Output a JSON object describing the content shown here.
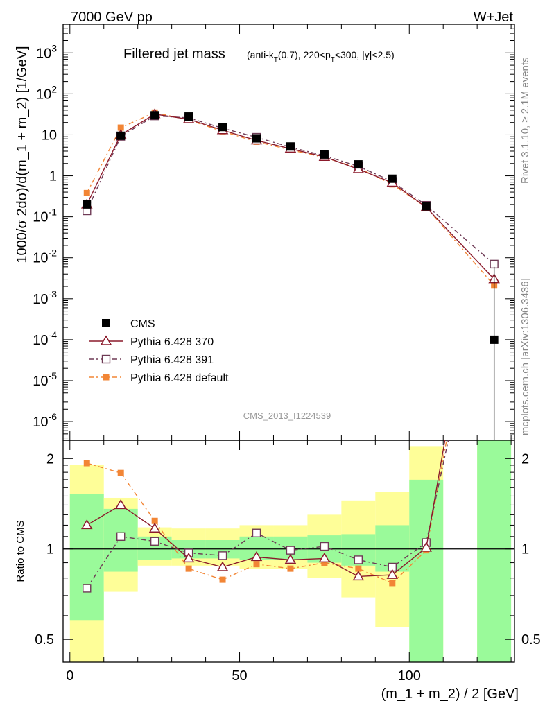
{
  "header": {
    "energy_label": "7000 GeV pp",
    "process_label": "W+Jet",
    "plot_title_main": "Filtered jet mass",
    "plot_title_sub": "(anti-k_T(0.7), 220<p_T<300, |y|<2.5)",
    "watermark": "CMS_2013_I1224539",
    "side_top": "Rivet 3.1.10, ≥ 2.1M events",
    "side_bottom": "mcplots.cern.ch [arXiv:1306.3436]"
  },
  "legend": [
    {
      "label": "CMS",
      "color": "#000000",
      "marker": "square-filled"
    },
    {
      "label": "Pythia 6.428 370",
      "color": "#8b1a2b",
      "marker": "triangle-open"
    },
    {
      "label": "Pythia 6.428 391",
      "color": "#6e3a55",
      "marker": "square-open"
    },
    {
      "label": "Pythia 6.428 default",
      "color": "#f28535",
      "marker": "square-filled-small"
    }
  ],
  "chart_data": [
    {
      "type": "line",
      "panel": "main",
      "ylabel": "1000/σ 2dσ)/d(m_1 + m_2) [1/GeV]",
      "yscale": "log",
      "ylim": [
        3.5e-07,
        5000
      ],
      "xlim": [
        -2,
        131
      ],
      "yticks": [
        1e-06,
        1e-05,
        0.0001,
        0.001,
        0.01,
        0.1,
        1,
        10,
        100,
        1000
      ],
      "ytick_labels": [
        "10^-6",
        "10^-5",
        "10^-4",
        "10^-3",
        "10^-2",
        "10^-1",
        "1",
        "10",
        "10^2",
        "10^3"
      ],
      "x": [
        5,
        15,
        25,
        35,
        45,
        55,
        65,
        75,
        85,
        95,
        105,
        125
      ],
      "series": [
        {
          "name": "CMS",
          "values": [
            0.2,
            9.5,
            30,
            28,
            15.5,
            8.2,
            5.2,
            3.3,
            1.9,
            0.85,
            0.18,
            0.0001
          ]
        },
        {
          "name": "Pythia 6.428 370",
          "values": [
            0.2,
            10,
            32,
            24,
            13,
            7.3,
            4.6,
            2.9,
            1.45,
            0.68,
            0.17,
            0.003
          ]
        },
        {
          "name": "Pythia 6.428 391",
          "values": [
            0.14,
            9.2,
            29,
            26,
            14.5,
            8.7,
            5.0,
            3.1,
            1.7,
            0.73,
            0.19,
            0.007
          ]
        },
        {
          "name": "Pythia 6.428 default",
          "values": [
            0.38,
            15,
            35,
            23,
            12.2,
            6.8,
            4.3,
            2.8,
            1.55,
            0.62,
            0.17,
            0.0021
          ]
        }
      ]
    },
    {
      "type": "line",
      "panel": "ratio",
      "ylabel": "Ratio to CMS",
      "xlabel": "(m_1 + m_2) / 2 [GeV]",
      "ylim": [
        0.42,
        2.3
      ],
      "xlim": [
        -2,
        131
      ],
      "yticks": [
        0.5,
        1,
        2
      ],
      "xticks": [
        0,
        50,
        100
      ],
      "x": [
        5,
        15,
        25,
        35,
        45,
        55,
        65,
        75,
        85,
        95,
        105
      ],
      "series": [
        {
          "name": "Pythia 6.428 370",
          "values": [
            1.2,
            1.4,
            1.17,
            0.93,
            0.87,
            0.94,
            0.92,
            0.93,
            0.81,
            0.82,
            1.01
          ]
        },
        {
          "name": "Pythia 6.428 391",
          "values": [
            0.74,
            1.1,
            1.06,
            0.97,
            0.95,
            1.13,
            0.99,
            1.02,
            0.92,
            0.87,
            1.05
          ]
        },
        {
          "name": "Pythia 6.428 default",
          "values": [
            1.93,
            1.79,
            1.24,
            0.86,
            0.79,
            0.89,
            0.86,
            0.9,
            0.86,
            0.77,
            0.99
          ]
        }
      ],
      "uncertainty_bands": [
        {
          "x_range": [
            0,
            10
          ],
          "inner": [
            0.58,
            1.52
          ],
          "outer": [
            0.3,
            1.9
          ]
        },
        {
          "x_range": [
            10,
            20
          ],
          "inner": [
            0.84,
            1.36
          ],
          "outer": [
            0.72,
            1.48
          ]
        },
        {
          "x_range": [
            20,
            30
          ],
          "inner": [
            0.92,
            1.1
          ],
          "outer": [
            0.88,
            1.18
          ]
        },
        {
          "x_range": [
            30,
            40
          ],
          "inner": [
            0.93,
            1.07
          ],
          "outer": [
            0.88,
            1.17
          ]
        },
        {
          "x_range": [
            40,
            50
          ],
          "inner": [
            0.93,
            1.07
          ],
          "outer": [
            0.88,
            1.17
          ]
        },
        {
          "x_range": [
            50,
            60
          ],
          "inner": [
            0.92,
            1.1
          ],
          "outer": [
            0.86,
            1.2
          ]
        },
        {
          "x_range": [
            60,
            70
          ],
          "inner": [
            0.92,
            1.1
          ],
          "outer": [
            0.86,
            1.2
          ]
        },
        {
          "x_range": [
            70,
            80
          ],
          "inner": [
            0.9,
            1.11
          ],
          "outer": [
            0.8,
            1.3
          ]
        },
        {
          "x_range": [
            80,
            90
          ],
          "inner": [
            0.88,
            1.12
          ],
          "outer": [
            0.69,
            1.45
          ]
        },
        {
          "x_range": [
            90,
            100
          ],
          "inner": [
            0.84,
            1.2
          ],
          "outer": [
            0.55,
            1.55
          ]
        },
        {
          "x_range": [
            100,
            110
          ],
          "inner": [
            0.3,
            1.7
          ],
          "outer": [
            0.3,
            2.2
          ]
        },
        {
          "x_range": [
            120,
            130
          ],
          "inner": [
            0.3,
            2.5
          ],
          "outer": [
            0.3,
            2.5
          ]
        }
      ]
    }
  ]
}
